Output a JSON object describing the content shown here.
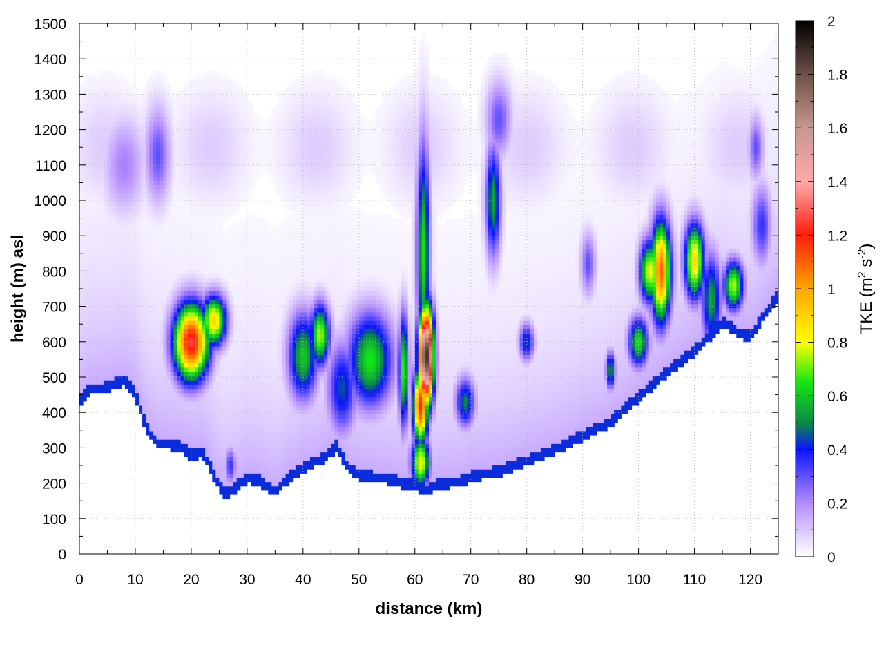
{
  "chart_data": {
    "type": "heatmap",
    "title": "",
    "xlabel": "distance (km)",
    "ylabel": "height (m) asl",
    "xlim": [
      0,
      125
    ],
    "ylim": [
      0,
      1500
    ],
    "x_ticks": [
      "0",
      "10",
      "20",
      "30",
      "40",
      "50",
      "60",
      "70",
      "80",
      "90",
      "100",
      "110",
      "120"
    ],
    "y_ticks": [
      "0",
      "100",
      "200",
      "300",
      "400",
      "500",
      "600",
      "700",
      "800",
      "900",
      "1000",
      "1100",
      "1200",
      "1300",
      "1400",
      "1500"
    ],
    "grid": true,
    "colorbar": {
      "label_main": "TKE (m",
      "label_sup1": "2",
      "label_mid": " s",
      "label_sup2": "-2",
      "label_end": ")",
      "range": [
        0,
        2
      ],
      "ticks": [
        "0",
        "0.2",
        "0.4",
        "0.6",
        "0.8",
        "1",
        "1.2",
        "1.4",
        "1.6",
        "1.8",
        "2"
      ],
      "stops": [
        {
          "v": 0.0,
          "color": "#ffffff"
        },
        {
          "v": 0.2,
          "color": "#b48cff"
        },
        {
          "v": 0.4,
          "color": "#0a14ff"
        },
        {
          "v": 0.5,
          "color": "#0a8a46"
        },
        {
          "v": 0.65,
          "color": "#14e614"
        },
        {
          "v": 0.8,
          "color": "#ffff00"
        },
        {
          "v": 1.0,
          "color": "#ffa500"
        },
        {
          "v": 1.2,
          "color": "#ff1e0a"
        },
        {
          "v": 1.4,
          "color": "#ffaaaa"
        },
        {
          "v": 1.6,
          "color": "#c89690"
        },
        {
          "v": 1.8,
          "color": "#6e5046"
        },
        {
          "v": 2.0,
          "color": "#000000"
        }
      ]
    },
    "terrain_profile": {
      "x": [
        0,
        2,
        4,
        6,
        8,
        10,
        12,
        14,
        16,
        18,
        20,
        22,
        24,
        26,
        28,
        30,
        32,
        35,
        38,
        40,
        42,
        44,
        46,
        48,
        50,
        52,
        54,
        56,
        58,
        60,
        62,
        64,
        66,
        68,
        70,
        75,
        80,
        85,
        90,
        95,
        100,
        105,
        110,
        115,
        118,
        120,
        122,
        125
      ],
      "y": [
        415,
        455,
        455,
        465,
        478,
        440,
        340,
        300,
        295,
        290,
        265,
        275,
        210,
        155,
        175,
        200,
        195,
        160,
        210,
        230,
        245,
        260,
        290,
        230,
        210,
        205,
        200,
        195,
        185,
        180,
        165,
        180,
        185,
        190,
        205,
        220,
        250,
        280,
        320,
        360,
        430,
        500,
        560,
        640,
        610,
        600,
        650,
        720
      ]
    },
    "blobs": [
      {
        "x": 8,
        "y": 1100,
        "rx": 4.0,
        "ry": 150,
        "v": 0.22
      },
      {
        "x": 14,
        "y": 1130,
        "rx": 2.5,
        "ry": 150,
        "v": 0.3
      },
      {
        "x": 20,
        "y": 600,
        "rx": 3.5,
        "ry": 120,
        "v": 1.25
      },
      {
        "x": 24,
        "y": 660,
        "rx": 2.5,
        "ry": 80,
        "v": 0.9
      },
      {
        "x": 27,
        "y": 250,
        "rx": 1.2,
        "ry": 60,
        "v": 0.35
      },
      {
        "x": 40,
        "y": 560,
        "rx": 3.0,
        "ry": 140,
        "v": 0.6
      },
      {
        "x": 43,
        "y": 620,
        "rx": 2.0,
        "ry": 100,
        "v": 0.75
      },
      {
        "x": 47,
        "y": 470,
        "rx": 3.0,
        "ry": 150,
        "v": 0.45
      },
      {
        "x": 52,
        "y": 550,
        "rx": 4.5,
        "ry": 150,
        "v": 0.65
      },
      {
        "x": 58,
        "y": 520,
        "rx": 1.0,
        "ry": 180,
        "v": 0.7
      },
      {
        "x": 61.5,
        "y": 850,
        "rx": 1.3,
        "ry": 350,
        "v": 0.65
      },
      {
        "x": 62,
        "y": 560,
        "rx": 1.5,
        "ry": 150,
        "v": 1.9
      },
      {
        "x": 61,
        "y": 420,
        "rx": 1.5,
        "ry": 120,
        "v": 1.2
      },
      {
        "x": 61,
        "y": 260,
        "rx": 1.8,
        "ry": 80,
        "v": 0.85
      },
      {
        "x": 69,
        "y": 430,
        "rx": 2.0,
        "ry": 80,
        "v": 0.5
      },
      {
        "x": 74,
        "y": 1000,
        "rx": 1.5,
        "ry": 180,
        "v": 0.55
      },
      {
        "x": 75,
        "y": 1230,
        "rx": 2.5,
        "ry": 120,
        "v": 0.3
      },
      {
        "x": 80,
        "y": 600,
        "rx": 1.5,
        "ry": 60,
        "v": 0.45
      },
      {
        "x": 91,
        "y": 820,
        "rx": 1.5,
        "ry": 100,
        "v": 0.3
      },
      {
        "x": 95,
        "y": 520,
        "rx": 1.0,
        "ry": 60,
        "v": 0.55
      },
      {
        "x": 100,
        "y": 600,
        "rx": 2.0,
        "ry": 80,
        "v": 0.65
      },
      {
        "x": 102,
        "y": 800,
        "rx": 2.0,
        "ry": 100,
        "v": 0.8
      },
      {
        "x": 104,
        "y": 800,
        "rx": 2.0,
        "ry": 160,
        "v": 1.1
      },
      {
        "x": 110,
        "y": 830,
        "rx": 2.0,
        "ry": 120,
        "v": 0.9
      },
      {
        "x": 113,
        "y": 720,
        "rx": 2.0,
        "ry": 150,
        "v": 0.55
      },
      {
        "x": 117,
        "y": 760,
        "rx": 2.0,
        "ry": 80,
        "v": 0.75
      },
      {
        "x": 122,
        "y": 930,
        "rx": 2.0,
        "ry": 130,
        "v": 0.35
      },
      {
        "x": 121,
        "y": 1150,
        "rx": 1.5,
        "ry": 100,
        "v": 0.3
      }
    ]
  }
}
